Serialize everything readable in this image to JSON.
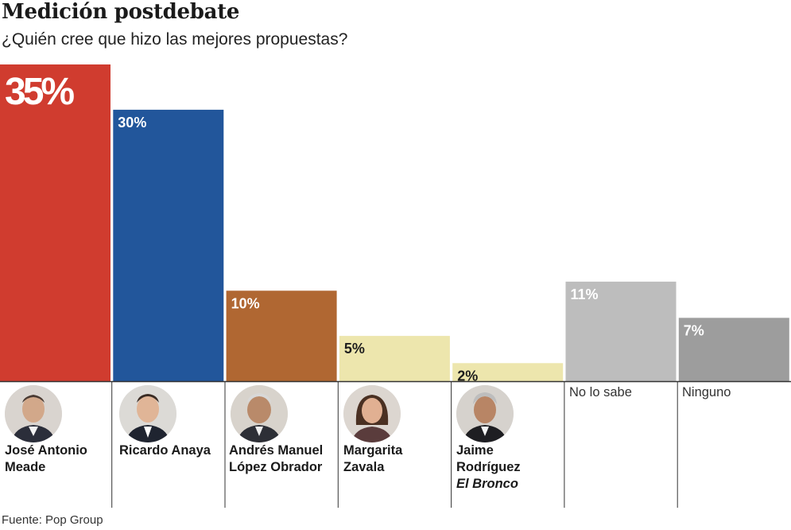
{
  "chart_data": {
    "type": "bar",
    "title": "Medición postdebate",
    "subtitle": "¿Quién cree que hizo las mejores propuestas?",
    "categories": [
      "José Antonio Meade",
      "Ricardo Anaya",
      "Andrés Manuel López Obrador",
      "Margarita Zavala",
      "Jaime Rodríguez El Bronco",
      "No lo sabe",
      "Ninguno"
    ],
    "values": [
      35,
      30,
      10,
      5,
      2,
      11,
      7
    ],
    "value_labels": [
      "35%",
      "30%",
      "10%",
      "5%",
      "2%",
      "11%",
      "7%"
    ],
    "colors": [
      "#d03c2f",
      "#22569b",
      "#b06732",
      "#ede6ad",
      "#ede6ad",
      "#bdbdbd",
      "#9d9d9d"
    ],
    "ylim": [
      0,
      35
    ],
    "xlabel": "",
    "ylabel": "",
    "source": "Fuente: Pop Group"
  },
  "candidates": [
    {
      "line1": "José Antonio",
      "line2": "Meade",
      "photo": "meade-photo"
    },
    {
      "line1": "Ricardo Anaya",
      "photo": "anaya-photo"
    },
    {
      "line1": "Andrés Manuel",
      "line2": "López Obrador",
      "photo": "amlo-photo"
    },
    {
      "line1": "Margarita",
      "line2": "Zavala",
      "photo": "zavala-photo"
    },
    {
      "line1": "Jaime",
      "line2": "Rodríguez",
      "line3": "El Bronco",
      "photo": "bronco-photo"
    },
    {
      "line1": "No lo sabe"
    },
    {
      "line1": "Ninguno"
    }
  ]
}
